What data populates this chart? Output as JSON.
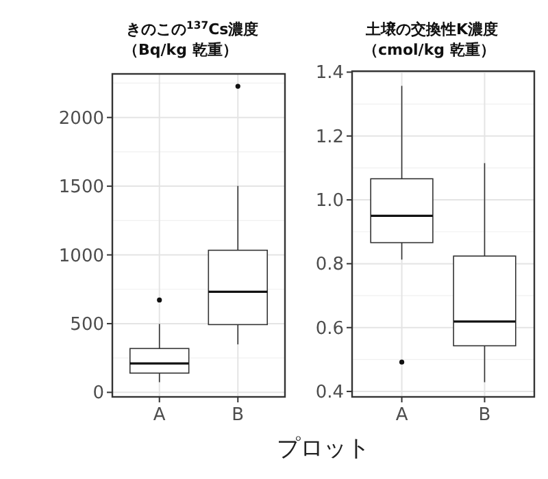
{
  "chart_data": [
    {
      "type": "box",
      "title": "きのこの$^{137}$Cs濃度",
      "subtitle": "（Bq/kg 乾重）",
      "xlabel": "プロット",
      "categories": [
        "A",
        "B"
      ],
      "boxes": [
        {
          "low": 74,
          "q1": 140,
          "median": 210,
          "q3": 319,
          "high": 498,
          "outliers": [
            672
          ]
        },
        {
          "low": 349,
          "q1": 493,
          "median": 732,
          "q3": 1034,
          "high": 1502,
          "outliers": [
            2227
          ]
        }
      ],
      "ylim": [
        -33,
        2317
      ],
      "yticks": [
        0,
        500,
        1000,
        1500,
        2000
      ],
      "grid": true
    },
    {
      "type": "box",
      "title": "土壌の交換性K濃度",
      "subtitle": "（cmol/kg 乾重）",
      "categories": [
        "A",
        "B"
      ],
      "boxes": [
        {
          "low": 0.813,
          "q1": 0.866,
          "median": 0.95,
          "q3": 1.066,
          "high": 1.357,
          "outliers": [
            0.492
          ]
        },
        {
          "low": 0.429,
          "q1": 0.543,
          "median": 0.619,
          "q3": 0.824,
          "high": 1.115
        }
      ],
      "ylim": [
        0.383,
        1.403
      ],
      "yticks": [
        0.4,
        0.6,
        0.8,
        {
          "value": 1,
          "label": "1.0"
        },
        1.2,
        1.4
      ],
      "grid": true
    }
  ]
}
